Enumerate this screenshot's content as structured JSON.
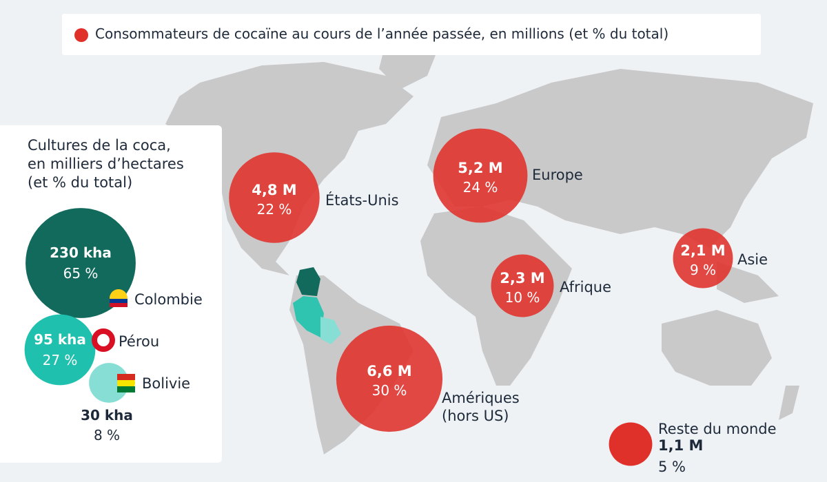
{
  "legend": "Consommateurs de cocaïne au cours de l’année passée, en millions (et % du total)",
  "consumers": [
    {
      "name": "États-Unis",
      "value": 4.8,
      "value_label": "4,8 M",
      "share": 22,
      "share_label": "22 %"
    },
    {
      "name": "Europe",
      "value": 5.2,
      "value_label": "5,2 M",
      "share": 24,
      "share_label": "24 %"
    },
    {
      "name": "Afrique",
      "value": 2.3,
      "value_label": "2,3 M",
      "share": 10,
      "share_label": "10 %"
    },
    {
      "name": "Asie",
      "value": 2.1,
      "value_label": "2,1 M",
      "share": 9,
      "share_label": "9 %"
    },
    {
      "name": "Amériques (hors US)",
      "value": 6.6,
      "value_label": "6,6 M",
      "share": 30,
      "share_label": "30 %"
    },
    {
      "name": "Reste du monde",
      "value": 1.1,
      "value_label": "1,1 M",
      "share": 5,
      "share_label": "5 %"
    }
  ],
  "coca": {
    "title": [
      "Cultures de la coca,",
      "en milliers d’hectares",
      "(et % du total)"
    ],
    "countries": [
      {
        "name": "Colombie",
        "value": 230,
        "value_label": "230 kha",
        "share": 65,
        "share_label": "65 %"
      },
      {
        "name": "Pérou",
        "value": 95,
        "value_label": "95 kha",
        "share": 27,
        "share_label": "27 %"
      },
      {
        "name": "Bolivie",
        "value": 30,
        "value_label": "30 kha",
        "share": 8,
        "share_label": "8 %"
      }
    ]
  }
}
